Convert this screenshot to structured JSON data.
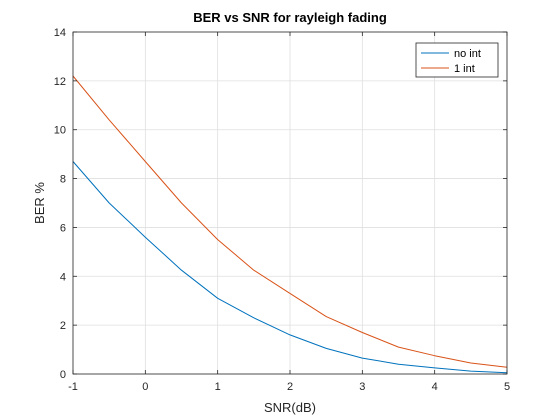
{
  "chart_data": {
    "type": "line",
    "title": "BER vs SNR for rayleigh fading",
    "xlabel": "SNR(dB)",
    "ylabel": "BER %",
    "xlim": [
      -1,
      5
    ],
    "ylim": [
      0,
      14
    ],
    "xticks": [
      "-1",
      "0",
      "1",
      "2",
      "3",
      "4",
      "5"
    ],
    "yticks": [
      "0",
      "2",
      "4",
      "6",
      "8",
      "10",
      "12",
      "14"
    ],
    "grid": true,
    "legend_position": "top-right",
    "x": [
      -1,
      -0.5,
      0,
      0.5,
      1,
      1.5,
      2,
      2.5,
      3,
      3.5,
      4,
      4.5,
      5
    ],
    "series": [
      {
        "name": "no int",
        "color": "#0072BD",
        "values": [
          8.7,
          7.0,
          5.6,
          4.25,
          3.1,
          2.3,
          1.6,
          1.05,
          0.65,
          0.4,
          0.25,
          0.12,
          0.05
        ]
      },
      {
        "name": "1 int",
        "color": "#D95319",
        "values": [
          12.2,
          10.4,
          8.7,
          7.0,
          5.5,
          4.25,
          3.3,
          2.35,
          1.7,
          1.1,
          0.75,
          0.45,
          0.28
        ]
      }
    ]
  }
}
